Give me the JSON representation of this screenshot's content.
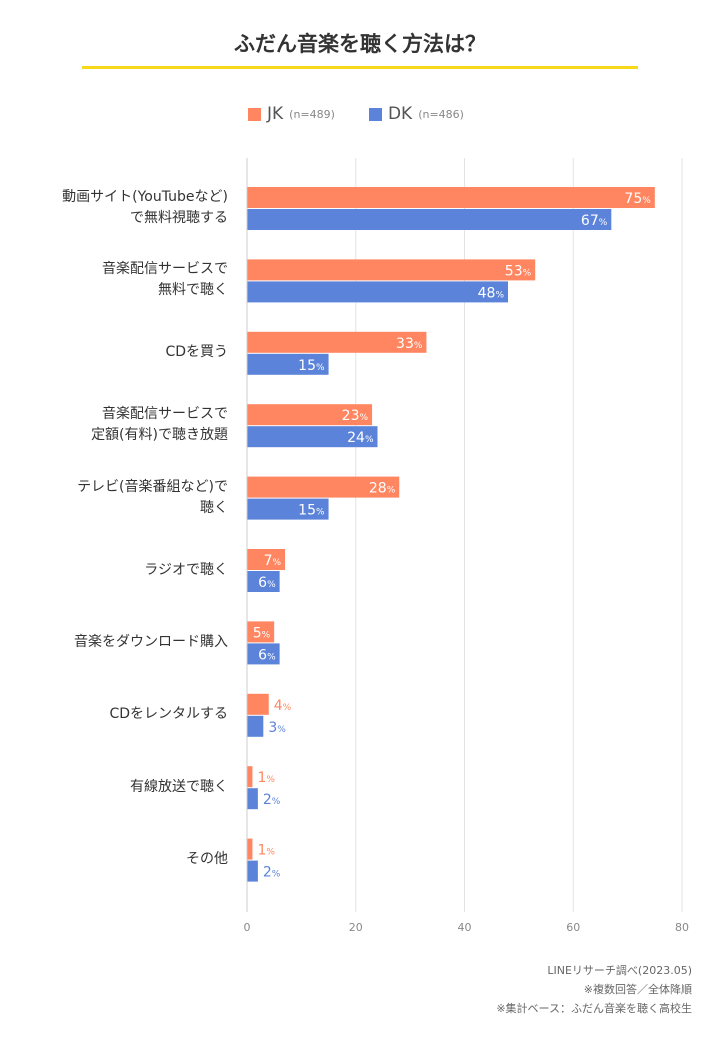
{
  "title": "ふだん音楽を聴く方法は？",
  "chart_data": {
    "type": "bar",
    "orientation": "horizontal",
    "categories": [
      "動画サイト(YouTubeなど)\nで無料視聴する",
      "音楽配信サービスで\n無料で聴く",
      "CDを買う",
      "音楽配信サービスで\n定額(有料)で聴き放題",
      "テレビ(音楽番組など)で\n聴く",
      "ラジオで聴く",
      "音楽をダウンロード購入",
      "CDをレンタルする",
      "有線放送で聴く",
      "その他"
    ],
    "series": [
      {
        "name": "JK",
        "n": "(n=489)",
        "color": "#FF8660",
        "values": [
          75,
          53,
          33,
          23,
          28,
          7,
          5,
          4,
          1,
          1
        ]
      },
      {
        "name": "DK",
        "n": "(n=486)",
        "color": "#5B83D9",
        "values": [
          67,
          48,
          15,
          24,
          15,
          6,
          6,
          3,
          2,
          2
        ]
      }
    ],
    "unit": "%",
    "xlim": [
      0,
      80
    ],
    "xticks": [
      "0",
      "20",
      "40",
      "60",
      "80"
    ],
    "grid": true,
    "legend": "top"
  },
  "notes": [
    "LINEリサーチ調べ(2023.05)",
    "※複数回答／全体降順",
    "※集計ベース：ふだん音楽を聴く高校生"
  ]
}
